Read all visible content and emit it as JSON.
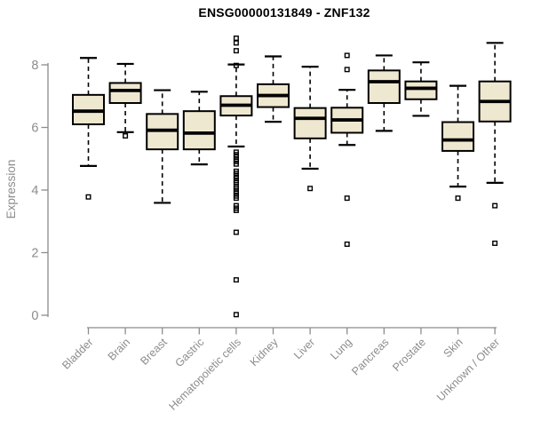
{
  "colors": {
    "box_fill": "#EFE8D0",
    "box_stroke": "#000000",
    "median": "#000000",
    "axis": "#8C8C8C",
    "title": "#000000"
  },
  "chart_data": {
    "type": "boxplot",
    "title": "ENSG00000131849 - ZNF132",
    "xlabel": "",
    "ylabel": "Expression",
    "ylim": [
      0,
      9
    ],
    "yticks": [
      0,
      2,
      4,
      6,
      8
    ],
    "grid": false,
    "legend": "none",
    "categories": [
      "Bladder",
      "Brain",
      "Breast",
      "Gastric",
      "Hematopoietic cells",
      "Kidney",
      "Liver",
      "Lung",
      "Pancreas",
      "Prostate",
      "Skin",
      "Unknown / Other"
    ],
    "series": [
      {
        "name": "Bladder",
        "low": 4.77,
        "q1": 6.1,
        "median": 6.52,
        "q3": 7.04,
        "high": 8.22,
        "outliers": [
          3.78
        ]
      },
      {
        "name": "Brain",
        "low": 5.85,
        "q1": 6.78,
        "median": 7.18,
        "q3": 7.42,
        "high": 8.03,
        "outliers": [
          5.73
        ]
      },
      {
        "name": "Breast",
        "low": 3.59,
        "q1": 5.3,
        "median": 5.91,
        "q3": 6.43,
        "high": 7.19,
        "outliers": []
      },
      {
        "name": "Gastric",
        "low": 4.82,
        "q1": 5.3,
        "median": 5.82,
        "q3": 6.52,
        "high": 7.14,
        "outliers": []
      },
      {
        "name": "Hematopoietic cells",
        "low": 5.39,
        "q1": 6.38,
        "median": 6.71,
        "q3": 7.0,
        "high": 8.01,
        "outliers": [
          8.85,
          8.7,
          8.45,
          7.98,
          5.21,
          5.13,
          5.06,
          4.98,
          4.91,
          4.83,
          4.6,
          4.53,
          4.45,
          4.38,
          4.3,
          4.23,
          4.11,
          4.04,
          3.96,
          3.89,
          3.81,
          3.74,
          3.5,
          3.42,
          3.35,
          2.65,
          1.13,
          0.02
        ]
      },
      {
        "name": "Kidney",
        "low": 6.18,
        "q1": 6.65,
        "median": 7.02,
        "q3": 7.38,
        "high": 8.27,
        "outliers": []
      },
      {
        "name": "Liver",
        "low": 4.68,
        "q1": 5.65,
        "median": 6.29,
        "q3": 6.62,
        "high": 7.94,
        "outliers": [
          4.05
        ]
      },
      {
        "name": "Lung",
        "low": 5.44,
        "q1": 5.83,
        "median": 6.24,
        "q3": 6.63,
        "high": 7.2,
        "outliers": [
          8.3,
          7.85,
          3.74,
          2.27
        ]
      },
      {
        "name": "Pancreas",
        "low": 5.89,
        "q1": 6.78,
        "median": 7.46,
        "q3": 7.82,
        "high": 8.3,
        "outliers": []
      },
      {
        "name": "Prostate",
        "low": 6.37,
        "q1": 6.9,
        "median": 7.25,
        "q3": 7.47,
        "high": 8.08,
        "outliers": []
      },
      {
        "name": "Skin",
        "low": 4.11,
        "q1": 5.25,
        "median": 5.6,
        "q3": 6.17,
        "high": 7.33,
        "outliers": [
          3.74
        ]
      },
      {
        "name": "Unknown / Other",
        "low": 4.23,
        "q1": 6.19,
        "median": 6.83,
        "q3": 7.47,
        "high": 8.7,
        "outliers": [
          3.5,
          2.3
        ]
      }
    ]
  }
}
